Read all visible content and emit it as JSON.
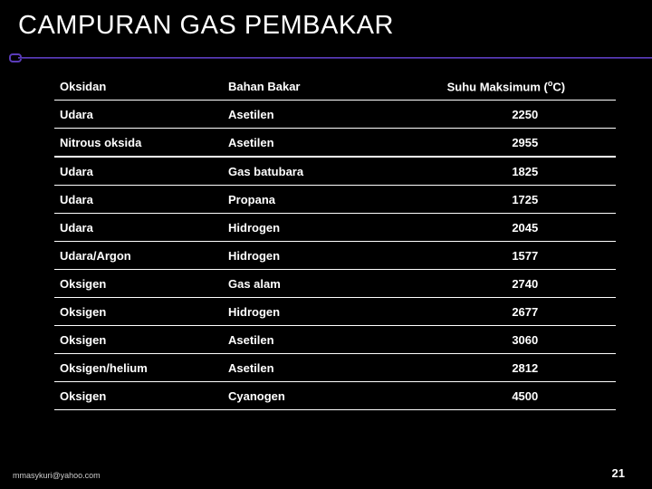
{
  "title": "CAMPURAN GAS PEMBAKAR",
  "columns": {
    "oksidan": "Oksidan",
    "bahan": "Bahan Bakar",
    "suhu_prefix": "Suhu Maksimum (",
    "suhu_sup": "o",
    "suhu_suffix": "C)"
  },
  "rows": [
    {
      "oksidan": "Udara",
      "bahan": "Asetilen",
      "suhu": "2250",
      "dbl": false
    },
    {
      "oksidan": "Nitrous oksida",
      "bahan": "Asetilen",
      "suhu": "2955",
      "dbl": true
    },
    {
      "oksidan": "Udara",
      "bahan": "Gas batubara",
      "suhu": "1825",
      "dbl": false
    },
    {
      "oksidan": "Udara",
      "bahan": "Propana",
      "suhu": "1725",
      "dbl": false
    },
    {
      "oksidan": "Udara",
      "bahan": "Hidrogen",
      "suhu": "2045",
      "dbl": false
    },
    {
      "oksidan": "Udara/Argon",
      "bahan": "Hidrogen",
      "suhu": "1577",
      "dbl": false
    },
    {
      "oksidan": "Oksigen",
      "bahan": "Gas alam",
      "suhu": "2740",
      "dbl": false
    },
    {
      "oksidan": "Oksigen",
      "bahan": "Hidrogen",
      "suhu": "2677",
      "dbl": false
    },
    {
      "oksidan": "Oksigen",
      "bahan": "Asetilen",
      "suhu": "3060",
      "dbl": false
    },
    {
      "oksidan": "Oksigen/helium",
      "bahan": "Asetilen",
      "suhu": "2812",
      "dbl": false
    },
    {
      "oksidan": "Oksigen",
      "bahan": "Cyanogen",
      "suhu": "4500",
      "dbl": false
    }
  ],
  "footer": {
    "email": "mmasykuri@yahoo.com",
    "page": "21"
  },
  "colors": {
    "background": "#000000",
    "text": "#ffffff",
    "accent": "#5a3bb8",
    "border": "#ffffff"
  }
}
